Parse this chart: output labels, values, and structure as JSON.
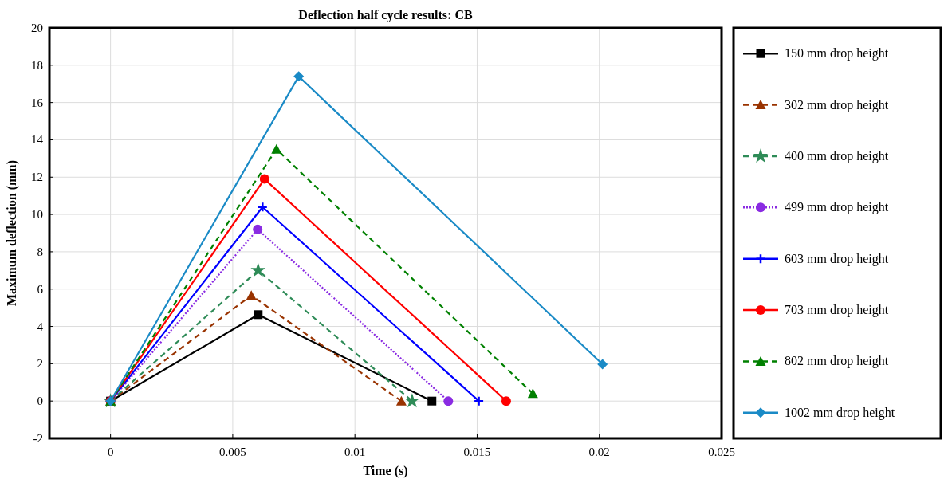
{
  "chart_data": {
    "type": "line",
    "title": "Deflection half cycle results: CB",
    "xlabel": "Time (s)",
    "ylabel": "Maximum deflection (mm)",
    "xlim": [
      -0.0025,
      0.025
    ],
    "xticks": [
      0,
      0.005,
      0.01,
      0.015,
      0.02,
      0.025
    ],
    "ylim": [
      -2,
      20
    ],
    "yticks": [
      -2,
      0,
      2,
      4,
      6,
      8,
      10,
      12,
      14,
      16,
      18,
      20
    ],
    "grid": true,
    "legend": "right",
    "series": [
      {
        "name": "150 mm drop height",
        "color": "#000000",
        "marker": "square",
        "line_style": "solid",
        "x": [
          0,
          0.00604,
          0.01315
        ],
        "values": [
          0,
          4.63,
          0
        ]
      },
      {
        "name": "302 mm drop height",
        "color": "#993300",
        "marker": "triangle",
        "line_style": "dashed",
        "x": [
          0,
          0.00576,
          0.0119
        ],
        "values": [
          0,
          5.66,
          0
        ]
      },
      {
        "name": "400 mm drop height",
        "color": "#2e8b57",
        "marker": "star",
        "line_style": "dashed",
        "x": [
          0,
          0.00604,
          0.01234
        ],
        "values": [
          0,
          7.0,
          0
        ]
      },
      {
        "name": "499 mm drop height",
        "color": "#8a2be2",
        "marker": "circle",
        "line_style": "dotted",
        "x": [
          0,
          0.00602,
          0.01382
        ],
        "values": [
          0,
          9.2,
          0
        ]
      },
      {
        "name": "603 mm drop height",
        "color": "#0000ff",
        "marker": "cross",
        "line_style": "solid",
        "x": [
          0,
          0.00622,
          0.01507
        ],
        "values": [
          0,
          10.4,
          0
        ]
      },
      {
        "name": "703 mm drop height",
        "color": "#ff0000",
        "marker": "circle",
        "line_style": "solid",
        "x": [
          0,
          0.0063,
          0.01619
        ],
        "values": [
          0,
          11.9,
          0
        ]
      },
      {
        "name": "802 mm drop height",
        "color": "#008000",
        "marker": "triangle",
        "line_style": "dashed",
        "x": [
          0,
          0.00679,
          0.01728
        ],
        "values": [
          0,
          13.5,
          0.4
        ]
      },
      {
        "name": "1002 mm drop height",
        "color": "#1a8ac6",
        "marker": "diamond",
        "line_style": "solid",
        "x": [
          0,
          0.0077,
          0.02013
        ],
        "values": [
          0,
          17.4,
          1.97
        ]
      }
    ]
  }
}
